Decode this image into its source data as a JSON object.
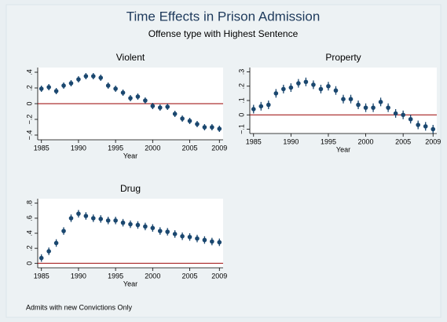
{
  "title": "Time Effects in Prison Admission",
  "subtitle": "Offense type with Highest Sentence",
  "note": "Admits with new Convictions Only",
  "chart_data": [
    {
      "type": "errorbar",
      "title": "Violent",
      "x_label": "Year",
      "color": "#1a476f",
      "refline": 0,
      "refline_color": "#990000",
      "x": [
        1985,
        1986,
        1987,
        1988,
        1989,
        1990,
        1991,
        1992,
        1993,
        1994,
        1995,
        1996,
        1997,
        1998,
        1999,
        2000,
        2001,
        2002,
        2003,
        2004,
        2005,
        2006,
        2007,
        2008,
        2009
      ],
      "values": [
        0.19,
        0.21,
        0.16,
        0.23,
        0.26,
        0.31,
        0.35,
        0.35,
        0.33,
        0.23,
        0.19,
        0.14,
        0.07,
        0.09,
        0.04,
        -0.03,
        -0.05,
        -0.04,
        -0.13,
        -0.19,
        -0.22,
        -0.26,
        -0.3,
        -0.3,
        -0.32
      ],
      "errors": [
        0.04,
        0.04,
        0.04,
        0.04,
        0.04,
        0.04,
        0.04,
        0.04,
        0.04,
        0.04,
        0.04,
        0.04,
        0.04,
        0.04,
        0.04,
        0.04,
        0.04,
        0.04,
        0.04,
        0.04,
        0.04,
        0.04,
        0.04,
        0.04,
        0.04
      ],
      "xlim": [
        1984.5,
        2009.5
      ],
      "xticks": [
        1985,
        1990,
        1995,
        2000,
        2005,
        2009
      ],
      "ylim": [
        -0.46,
        0.46
      ],
      "yticks": [
        {
          "value": -0.4,
          "label": "−.4"
        },
        {
          "value": -0.2,
          "label": "−.2"
        },
        0,
        {
          "value": 0.2,
          "label": ".2"
        },
        {
          "value": 0.4,
          "label": ".4"
        }
      ]
    },
    {
      "type": "errorbar",
      "title": "Property",
      "x_label": "Year",
      "color": "#1a476f",
      "refline": 0,
      "refline_color": "#990000",
      "x": [
        1985,
        1986,
        1987,
        1988,
        1989,
        1990,
        1991,
        1992,
        1993,
        1994,
        1995,
        1996,
        1997,
        1998,
        1999,
        2000,
        2001,
        2002,
        2003,
        2004,
        2005,
        2006,
        2007,
        2008,
        2009
      ],
      "values": [
        0.04,
        0.06,
        0.07,
        0.15,
        0.18,
        0.19,
        0.22,
        0.23,
        0.21,
        0.18,
        0.2,
        0.17,
        0.11,
        0.11,
        0.07,
        0.05,
        0.05,
        0.09,
        0.05,
        0.01,
        0.0,
        -0.03,
        -0.07,
        -0.08,
        -0.1
      ],
      "errors": [
        0.03,
        0.03,
        0.03,
        0.03,
        0.03,
        0.03,
        0.03,
        0.03,
        0.03,
        0.03,
        0.03,
        0.03,
        0.03,
        0.03,
        0.03,
        0.03,
        0.03,
        0.03,
        0.03,
        0.03,
        0.03,
        0.03,
        0.03,
        0.03,
        0.03
      ],
      "xlim": [
        1984.5,
        2009.5
      ],
      "xticks": [
        1985,
        1990,
        1995,
        2000,
        2005,
        2009
      ],
      "ylim": [
        -0.13,
        0.33
      ],
      "yticks": [
        {
          "value": -0.1,
          "label": "−.1"
        },
        0,
        {
          "value": 0.1,
          "label": ".1"
        },
        {
          "value": 0.2,
          "label": ".2"
        },
        {
          "value": 0.3,
          "label": ".3"
        }
      ]
    },
    {
      "type": "errorbar",
      "title": "Drug",
      "x_label": "Year",
      "color": "#1a476f",
      "refline": 0,
      "refline_color": "#990000",
      "x": [
        1985,
        1986,
        1987,
        1988,
        1989,
        1990,
        1991,
        1992,
        1993,
        1994,
        1995,
        1996,
        1997,
        1998,
        1999,
        2000,
        2001,
        2002,
        2003,
        2004,
        2005,
        2006,
        2007,
        2008,
        2009
      ],
      "values": [
        0.07,
        0.16,
        0.27,
        0.43,
        0.6,
        0.66,
        0.63,
        0.6,
        0.59,
        0.57,
        0.57,
        0.54,
        0.52,
        0.51,
        0.49,
        0.47,
        0.43,
        0.42,
        0.39,
        0.36,
        0.35,
        0.33,
        0.31,
        0.29,
        0.28
      ],
      "errors": [
        0.05,
        0.05,
        0.05,
        0.05,
        0.05,
        0.05,
        0.05,
        0.05,
        0.05,
        0.05,
        0.05,
        0.05,
        0.05,
        0.05,
        0.05,
        0.05,
        0.05,
        0.05,
        0.05,
        0.05,
        0.05,
        0.05,
        0.05,
        0.05,
        0.05
      ],
      "xlim": [
        1984.5,
        2009.5
      ],
      "xticks": [
        1985,
        1990,
        1995,
        2000,
        2005,
        2009
      ],
      "ylim": [
        -0.06,
        0.86
      ],
      "yticks": [
        0,
        {
          "value": 0.2,
          "label": ".2"
        },
        {
          "value": 0.4,
          "label": ".4"
        },
        {
          "value": 0.6,
          "label": ".6"
        },
        {
          "value": 0.8,
          "label": ".8"
        }
      ]
    }
  ]
}
